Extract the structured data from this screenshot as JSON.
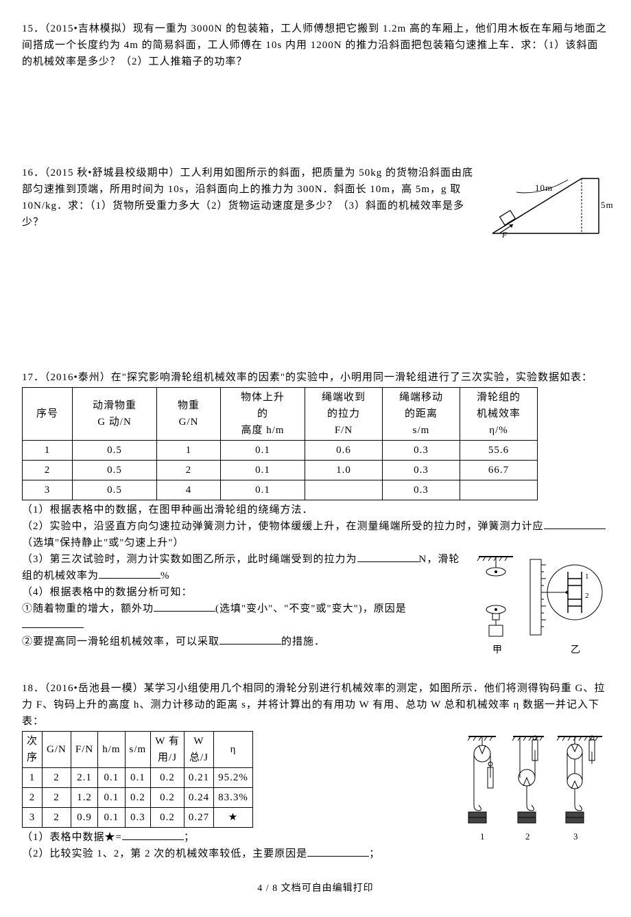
{
  "q15": {
    "text": "15．（2015•吉林模拟）现有一重为 3000N 的包装箱，工人师傅想把它搬到 1.2m 高的车厢上，他们用木板在车厢与地面之间搭成一个长度约为 4m 的简易斜面，工人师傅在 10s 内用 1200N 的推力沿斜面把包装箱匀速推上车．求：（1）该斜面的机械效率是多少？（2）工人推箱子的功率？"
  },
  "q16": {
    "text": "16．（2015 秋•舒城县校级期中）工人利用如图所示的斜面，把质量为 50kg 的货物沿斜面由底部匀速推到顶端，所用时间为 10s，沿斜面向上的推力为 300N．斜面长 10m，高 5m，g 取 10N/kg．求：（1）货物所受重力多大（2）货物运动速度是多少？（3）斜面的机械效率是多少？",
    "diagram": {
      "len_label": "10m",
      "height_label": "5m",
      "force_label": "F"
    }
  },
  "q17": {
    "intro": "17．（2016•泰州）在\"探究影响滑轮组机械效率的因素\"的实验中，小明用同一滑轮组进行了三次实验，实验数据如表：",
    "headers": [
      "序号",
      "动滑物重\nG 动/N",
      "物重\nG/N",
      "物体上升\n的\n高度 h/m",
      "绳端收到\n的拉力\nF/N",
      "绳端移动\n的距离\ns/m",
      "滑轮组的\n机械效率\nη/%"
    ],
    "rows": [
      [
        "1",
        "0.5",
        "1",
        "0.1",
        "0.6",
        "0.3",
        "55.6"
      ],
      [
        "2",
        "0.5",
        "2",
        "0.1",
        "1.0",
        "0.3",
        "66.7"
      ],
      [
        "3",
        "0.5",
        "4",
        "0.1",
        "",
        "0.3",
        ""
      ]
    ],
    "p1": "（1）根据表格中的数据，在图甲种画出滑轮组的绕绳方法．",
    "p2a": "（2）实验中，沿竖直方向匀速拉动弹簧测力计，使物体缓缓上升，在测量绳端所受的拉力时，弹簧测力计应",
    "p2b": "（选填\"保持静止\"或\"匀速上升\"）",
    "p3a": "（3）第三次试验时，测力计实数如图乙所示，此时绳端受到的拉力为",
    "p3b": "N，滑轮组的机械效率为",
    "p3c": "%",
    "p4": "（4）根据表格中的数据分析可知：",
    "p4_1a": "①随着物重的增大，额外功",
    "p4_1b": "(选填\"变小\"、\"不变\"或\"变大\")，原因是",
    "p4_2a": "②要提高同一滑轮组机械效率，可以采取",
    "p4_2b": "的措施．",
    "img_labels": {
      "jia": "甲",
      "yi": "乙"
    }
  },
  "q18": {
    "intro": "18．（2016•岳池县一模）某学习小组使用几个相同的滑轮分别进行机械效率的测定，如图所示．他们将测得钩码重 G、拉力 F、钩码上升的高度 h、测力计移动的距离 s，并将计算出的有用功 W 有用、总功 W 总和机械效率 η 数据一并记入下表：",
    "headers": [
      "次\n序",
      "G/N",
      "F/N",
      "h/m",
      "s/m",
      "W 有\n用/J",
      "W\n总/J",
      "η"
    ],
    "rows": [
      [
        "1",
        "2",
        "2.1",
        "0.1",
        "0.1",
        "0.2",
        "0.21",
        "95.2%"
      ],
      [
        "2",
        "2",
        "1.2",
        "0.1",
        "0.2",
        "0.2",
        "0.24",
        "83.3%"
      ],
      [
        "3",
        "2",
        "0.9",
        "0.1",
        "0.3",
        "0.2",
        "0.27",
        "★"
      ]
    ],
    "p1a": "（1）表格中数据★=",
    "p1b": "；",
    "p2a": "（2）比较实验 1、2，第 2 次的机械效率较低，主要原因是",
    "p2b": "；",
    "img_labels": {
      "n1": "1",
      "n2": "2",
      "n3": "3"
    }
  },
  "footer": "4 / 8 文档可自由编辑打印"
}
